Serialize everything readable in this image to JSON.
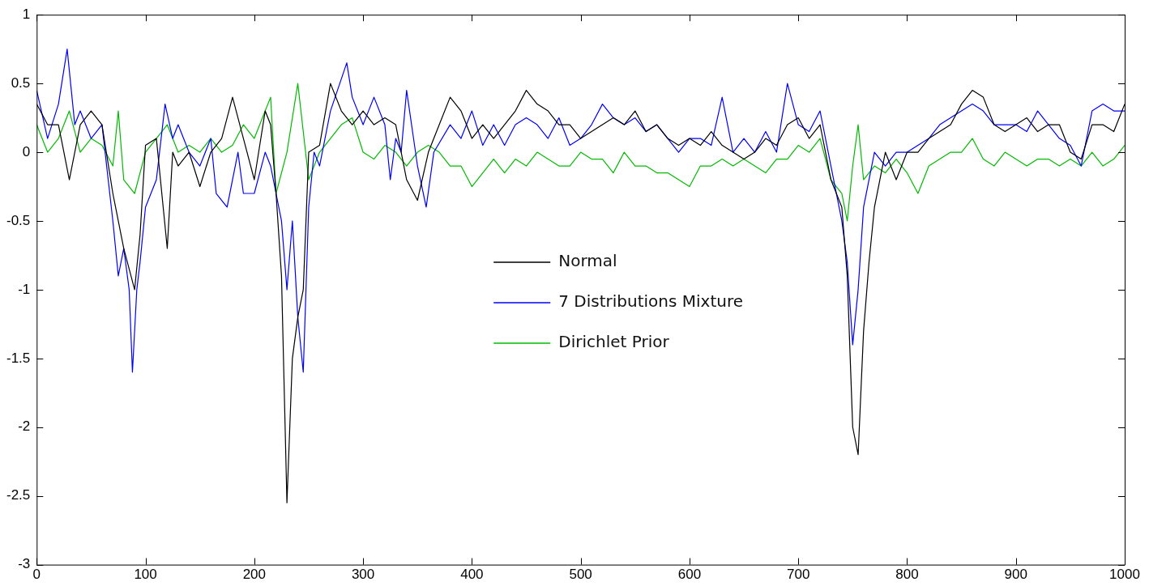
{
  "chart_data": {
    "type": "line",
    "xlim": [
      0,
      1000
    ],
    "xticks": [
      0,
      100,
      200,
      300,
      400,
      500,
      600,
      700,
      800,
      900,
      1000
    ],
    "ylim": [
      -3,
      1
    ],
    "yticks": [
      -3,
      -2.5,
      -2,
      -1.5,
      -1,
      -0.5,
      0,
      0.5,
      1
    ],
    "grid": false,
    "legend": "center",
    "marker": "none",
    "line_style": "solid",
    "series": [
      {
        "name": "Normal",
        "color": "#000000",
        "x": [
          0,
          10,
          20,
          30,
          40,
          50,
          60,
          70,
          80,
          85,
          90,
          95,
          100,
          110,
          120,
          125,
          130,
          140,
          150,
          160,
          170,
          180,
          190,
          200,
          210,
          215,
          220,
          225,
          230,
          235,
          240,
          245,
          250,
          260,
          270,
          280,
          290,
          300,
          310,
          320,
          330,
          340,
          350,
          360,
          370,
          380,
          390,
          400,
          410,
          420,
          430,
          440,
          450,
          460,
          470,
          480,
          490,
          500,
          510,
          520,
          530,
          540,
          550,
          560,
          570,
          580,
          590,
          600,
          610,
          620,
          630,
          640,
          650,
          660,
          670,
          680,
          690,
          700,
          710,
          720,
          730,
          740,
          745,
          750,
          755,
          760,
          765,
          770,
          780,
          790,
          800,
          810,
          820,
          830,
          840,
          850,
          860,
          870,
          880,
          890,
          900,
          910,
          920,
          930,
          940,
          950,
          960,
          970,
          980,
          990,
          1000
        ],
        "values": [
          0.35,
          0.2,
          0.2,
          -0.2,
          0.2,
          0.3,
          0.2,
          -0.3,
          -0.7,
          -0.85,
          -1.0,
          -0.6,
          0.05,
          0.1,
          -0.7,
          0.0,
          -0.1,
          0.0,
          -0.25,
          0.0,
          0.1,
          0.4,
          0.1,
          -0.2,
          0.3,
          0.2,
          -0.3,
          -0.9,
          -2.55,
          -1.5,
          -1.2,
          -1.0,
          0.0,
          0.05,
          0.5,
          0.3,
          0.2,
          0.3,
          0.2,
          0.25,
          0.2,
          -0.2,
          -0.35,
          0.0,
          0.2,
          0.4,
          0.3,
          0.1,
          0.2,
          0.1,
          0.2,
          0.3,
          0.45,
          0.35,
          0.3,
          0.2,
          0.2,
          0.1,
          0.15,
          0.2,
          0.25,
          0.2,
          0.3,
          0.15,
          0.2,
          0.1,
          0.05,
          0.1,
          0.05,
          0.15,
          0.05,
          0.0,
          -0.05,
          0.0,
          0.1,
          0.05,
          0.2,
          0.25,
          0.1,
          0.2,
          -0.2,
          -0.4,
          -0.9,
          -2.0,
          -2.2,
          -1.3,
          -0.8,
          -0.4,
          0.0,
          -0.2,
          0.0,
          0.0,
          0.1,
          0.15,
          0.2,
          0.35,
          0.45,
          0.4,
          0.2,
          0.15,
          0.2,
          0.25,
          0.15,
          0.2,
          0.2,
          0.0,
          -0.05,
          0.2,
          0.2,
          0.15,
          0.35
        ]
      },
      {
        "name": "7 Distributions Mixture",
        "color": "#0000ff",
        "x": [
          0,
          10,
          20,
          28,
          35,
          40,
          50,
          60,
          70,
          75,
          80,
          85,
          88,
          92,
          95,
          100,
          110,
          118,
          125,
          130,
          140,
          150,
          160,
          165,
          175,
          185,
          190,
          200,
          210,
          215,
          220,
          225,
          230,
          235,
          240,
          245,
          250,
          255,
          260,
          270,
          285,
          290,
          300,
          310,
          320,
          325,
          330,
          335,
          340,
          350,
          358,
          365,
          380,
          390,
          400,
          410,
          420,
          430,
          440,
          450,
          460,
          470,
          480,
          490,
          500,
          510,
          520,
          530,
          540,
          550,
          560,
          570,
          580,
          590,
          600,
          610,
          620,
          630,
          640,
          650,
          660,
          670,
          680,
          690,
          700,
          710,
          720,
          730,
          740,
          745,
          750,
          755,
          760,
          770,
          780,
          790,
          800,
          810,
          820,
          830,
          840,
          850,
          860,
          870,
          880,
          890,
          900,
          910,
          920,
          930,
          940,
          950,
          960,
          970,
          980,
          990,
          1000
        ],
        "values": [
          0.45,
          0.1,
          0.35,
          0.75,
          0.2,
          0.3,
          0.1,
          0.2,
          -0.5,
          -0.9,
          -0.7,
          -1.0,
          -1.6,
          -1.0,
          -0.8,
          -0.4,
          -0.2,
          0.35,
          0.1,
          0.2,
          0.0,
          -0.1,
          0.1,
          -0.3,
          -0.4,
          0.0,
          -0.3,
          -0.3,
          0.0,
          -0.1,
          -0.3,
          -0.5,
          -1.0,
          -0.5,
          -1.2,
          -1.6,
          -0.4,
          0.0,
          -0.1,
          0.3,
          0.65,
          0.4,
          0.2,
          0.4,
          0.2,
          -0.2,
          0.1,
          0.0,
          0.45,
          -0.1,
          -0.4,
          0.0,
          0.2,
          0.1,
          0.3,
          0.05,
          0.2,
          0.05,
          0.2,
          0.25,
          0.2,
          0.1,
          0.25,
          0.05,
          0.1,
          0.2,
          0.35,
          0.25,
          0.2,
          0.25,
          0.15,
          0.2,
          0.1,
          0.0,
          0.1,
          0.1,
          0.05,
          0.4,
          0.0,
          0.1,
          0.0,
          0.15,
          0.0,
          0.5,
          0.2,
          0.15,
          0.3,
          -0.1,
          -0.5,
          -0.8,
          -1.4,
          -1.0,
          -0.4,
          0.0,
          -0.1,
          0.0,
          0.0,
          0.05,
          0.1,
          0.2,
          0.25,
          0.3,
          0.35,
          0.3,
          0.2,
          0.2,
          0.2,
          0.15,
          0.3,
          0.2,
          0.1,
          0.05,
          -0.1,
          0.3,
          0.35,
          0.3,
          0.3
        ]
      },
      {
        "name": "Dirichlet Prior",
        "color": "#00bb00",
        "x": [
          0,
          10,
          20,
          30,
          40,
          50,
          60,
          70,
          75,
          80,
          90,
          100,
          110,
          120,
          130,
          140,
          150,
          160,
          170,
          180,
          190,
          200,
          210,
          215,
          220,
          230,
          240,
          250,
          260,
          270,
          280,
          290,
          300,
          310,
          320,
          330,
          340,
          350,
          360,
          370,
          380,
          390,
          400,
          410,
          420,
          430,
          440,
          450,
          460,
          470,
          480,
          490,
          500,
          510,
          520,
          530,
          540,
          550,
          560,
          570,
          580,
          590,
          600,
          610,
          620,
          630,
          640,
          650,
          660,
          670,
          680,
          690,
          700,
          710,
          720,
          730,
          740,
          745,
          750,
          755,
          760,
          770,
          780,
          790,
          800,
          810,
          820,
          830,
          840,
          850,
          860,
          870,
          880,
          890,
          900,
          910,
          920,
          930,
          940,
          950,
          960,
          970,
          980,
          990,
          1000
        ],
        "values": [
          0.2,
          0.0,
          0.1,
          0.3,
          0.0,
          0.1,
          0.05,
          -0.1,
          0.3,
          -0.2,
          -0.3,
          0.0,
          0.1,
          0.2,
          0.0,
          0.05,
          0.0,
          0.1,
          0.0,
          0.05,
          0.2,
          0.1,
          0.3,
          0.4,
          -0.3,
          0.0,
          0.5,
          -0.2,
          0.0,
          0.1,
          0.2,
          0.25,
          0.0,
          -0.05,
          0.05,
          0.0,
          -0.1,
          0.0,
          0.05,
          0.0,
          -0.1,
          -0.1,
          -0.25,
          -0.15,
          -0.05,
          -0.15,
          -0.05,
          -0.1,
          0.0,
          -0.05,
          -0.1,
          -0.1,
          0.0,
          -0.05,
          -0.05,
          -0.15,
          0.0,
          -0.1,
          -0.1,
          -0.15,
          -0.15,
          -0.2,
          -0.25,
          -0.1,
          -0.1,
          -0.05,
          -0.1,
          -0.05,
          -0.1,
          -0.15,
          -0.05,
          -0.05,
          0.05,
          0.0,
          0.1,
          -0.2,
          -0.3,
          -0.5,
          -0.1,
          0.2,
          -0.2,
          -0.1,
          -0.15,
          -0.05,
          -0.15,
          -0.3,
          -0.1,
          -0.05,
          0.0,
          0.0,
          0.1,
          -0.05,
          -0.1,
          0.0,
          -0.05,
          -0.1,
          -0.05,
          -0.05,
          -0.1,
          -0.05,
          -0.1,
          0.0,
          -0.1,
          -0.05,
          0.05
        ]
      }
    ]
  }
}
